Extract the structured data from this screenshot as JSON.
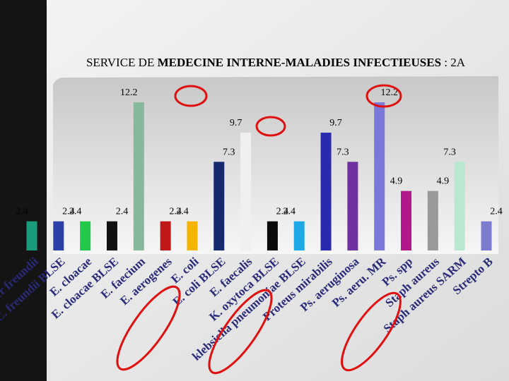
{
  "chart_data": {
    "type": "bar",
    "title": [
      "SERVICE DE ",
      "MEDECINE INTERNE-MALADIES INFECTIEUSES",
      " : 2A"
    ],
    "categories": [
      "Citrobacter freundii",
      "C. freundii BLSE",
      "E. cloacae",
      "E. cloacae BLSE",
      "E. faecium",
      "E. aerogenes",
      "E. coli",
      "E. coli BLSE",
      "E. faecalis",
      "K. oxytoca BLSE",
      "klebsiella pneumoniae BLSE",
      "Proteus mirabilis",
      "Ps. aeruginosa",
      "Ps. aeru. MR",
      "Ps. spp",
      "Staph aureus",
      "Staph aureus SARM",
      "Strepto B"
    ],
    "values": [
      2.4,
      2.4,
      2.4,
      2.4,
      12.2,
      2.4,
      2.4,
      7.3,
      9.7,
      2.4,
      2.4,
      9.7,
      7.3,
      12.2,
      4.9,
      4.9,
      7.3,
      2.4
    ],
    "colors": [
      "#1a9b7c",
      "#2a3fa8",
      "#22c84a",
      "#111111",
      "#86b89a",
      "#c01818",
      "#f5b400",
      "#14296e",
      "#f0f0f0",
      "#0a0a0a",
      "#1ea8e6",
      "#2a2ab0",
      "#7030a0",
      "#7a78d8",
      "#b0188c",
      "#9a9a9a",
      "#b8e8d0",
      "#7b7bd0"
    ]
  }
}
